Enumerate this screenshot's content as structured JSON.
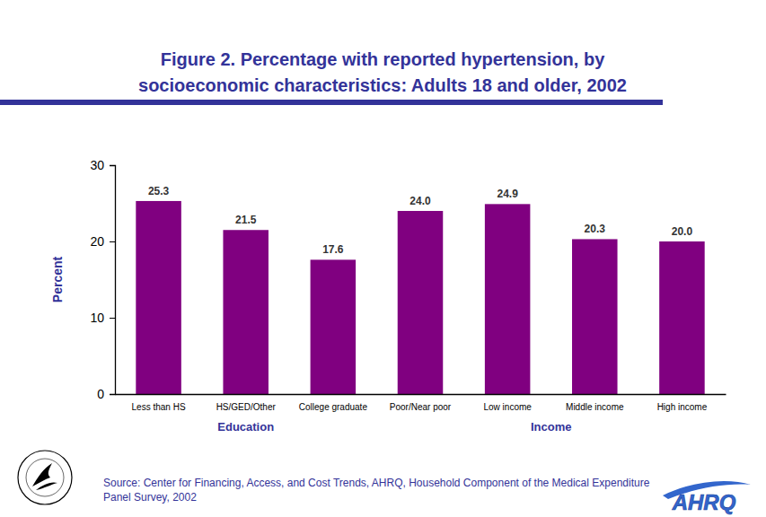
{
  "chart_data": {
    "type": "bar",
    "title": "Figure 2. Percentage with reported hypertension, by socioeconomic characteristics: Adults 18 and older, 2002",
    "categories": [
      "Less than HS",
      "HS/GED/Other",
      "College graduate",
      "Poor/Near poor",
      "Low income",
      "Middle income",
      "High income"
    ],
    "values": [
      25.3,
      21.5,
      17.6,
      24.0,
      24.9,
      20.3,
      20.0
    ],
    "value_labels": [
      "25.3",
      "21.5",
      "17.6",
      "24.0",
      "24.9",
      "20.3",
      "20.0"
    ],
    "x_groups": [
      {
        "label": "Education",
        "categories": [
          "Less than HS",
          "HS/GED/Other",
          "College graduate"
        ]
      },
      {
        "label": "Income",
        "categories": [
          "Poor/Near poor",
          "Low income",
          "Middle income",
          "High income"
        ]
      }
    ],
    "y_label": "Percent",
    "color": "#800080",
    "ylim": [
      0,
      30
    ],
    "yticks": [
      0,
      10,
      20,
      30
    ],
    "grid": false,
    "data_labels": true,
    "source": "Source: Center for Financing, Access, and Cost Trends, AHRQ, Household Component of the Medical Expenditure Panel Survey, 2002",
    "logo": "AHRQ"
  }
}
